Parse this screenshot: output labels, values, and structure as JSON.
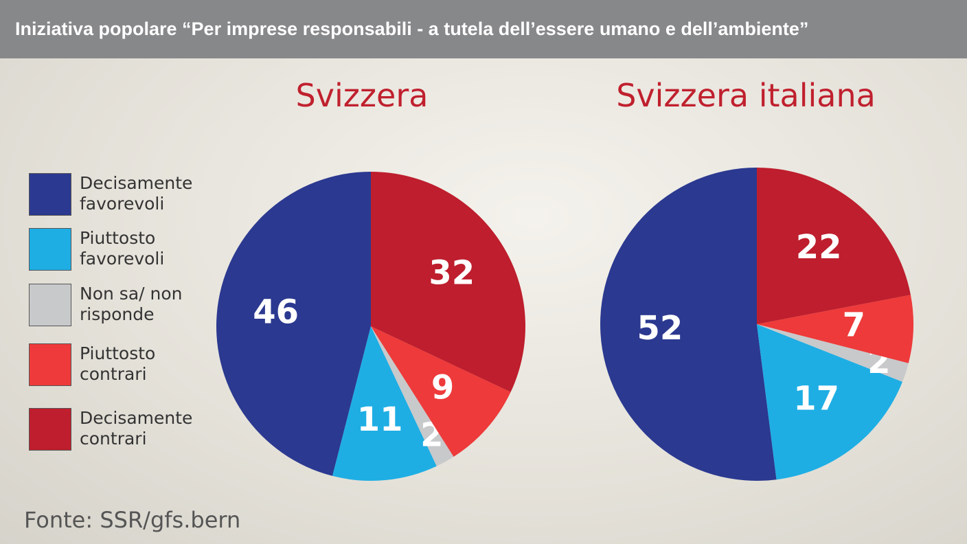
{
  "title": "Iniziativa popolare “Per imprese responsabili - a tutela dell’essere umano e dell’ambiente”",
  "source": "Fonte: SSR/gfs.bern",
  "chart_data": [
    {
      "type": "pie",
      "title": "Svizzera",
      "categories": [
        "Decisamente favorevoli",
        "Piuttosto favorevoli",
        "Non sa/ non risponde",
        "Piuttosto contrari",
        "Decisamente contrari"
      ],
      "values": [
        46,
        11,
        2,
        9,
        32
      ],
      "colors": [
        "#2b3990",
        "#1eaee4",
        "#c8c9cb",
        "#ee3a3a",
        "#be1e2d"
      ]
    },
    {
      "type": "pie",
      "title": "Svizzera italiana",
      "categories": [
        "Decisamente favorevoli",
        "Piuttosto favorevoli",
        "Non sa/ non risponde",
        "Piuttosto contrari",
        "Decisamente contrari"
      ],
      "values": [
        52,
        17,
        2,
        7,
        22
      ],
      "colors": [
        "#2b3990",
        "#1eaee4",
        "#c8c9cb",
        "#ee3a3a",
        "#be1e2d"
      ]
    }
  ]
}
